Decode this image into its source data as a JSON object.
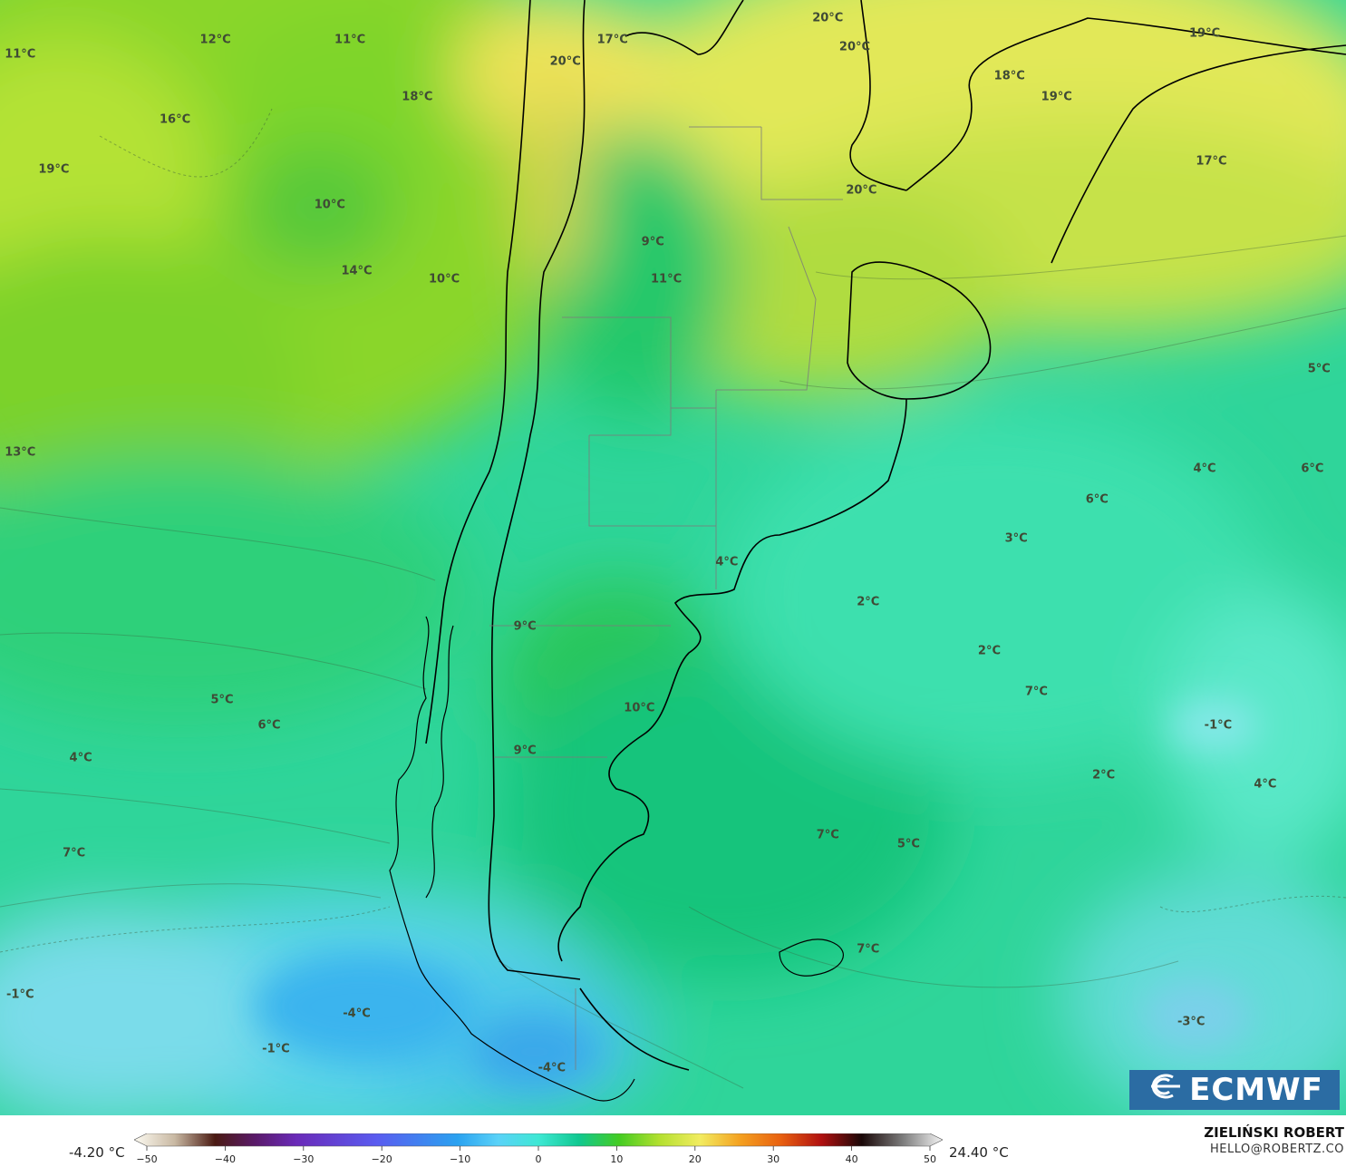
{
  "map": {
    "temperature_labels": [
      {
        "text": "11°C",
        "lon": 0.015,
        "lat": 0.049
      },
      {
        "text": "12°C",
        "lon": 0.16,
        "lat": 0.036
      },
      {
        "text": "11°C",
        "lon": 0.26,
        "lat": 0.036
      },
      {
        "text": "16°C",
        "lon": 0.13,
        "lat": 0.107
      },
      {
        "text": "19°C",
        "lon": 0.04,
        "lat": 0.152
      },
      {
        "text": "18°C",
        "lon": 0.31,
        "lat": 0.087
      },
      {
        "text": "20°C",
        "lon": 0.42,
        "lat": 0.055
      },
      {
        "text": "17°C",
        "lon": 0.455,
        "lat": 0.036
      },
      {
        "text": "10°C",
        "lon": 0.245,
        "lat": 0.184
      },
      {
        "text": "14°C",
        "lon": 0.265,
        "lat": 0.243
      },
      {
        "text": "10°C",
        "lon": 0.33,
        "lat": 0.25
      },
      {
        "text": "9°C",
        "lon": 0.485,
        "lat": 0.217
      },
      {
        "text": "11°C",
        "lon": 0.495,
        "lat": 0.25
      },
      {
        "text": "20°C",
        "lon": 0.615,
        "lat": 0.016
      },
      {
        "text": "20°C",
        "lon": 0.635,
        "lat": 0.042
      },
      {
        "text": "18°C",
        "lon": 0.75,
        "lat": 0.068
      },
      {
        "text": "19°C",
        "lon": 0.785,
        "lat": 0.087
      },
      {
        "text": "19°C",
        "lon": 0.895,
        "lat": 0.03
      },
      {
        "text": "17°C",
        "lon": 0.9,
        "lat": 0.145
      },
      {
        "text": "20°C",
        "lon": 0.64,
        "lat": 0.171
      },
      {
        "text": "5°C",
        "lon": 0.98,
        "lat": 0.331
      },
      {
        "text": "13°C",
        "lon": 0.015,
        "lat": 0.406
      },
      {
        "text": "4°C",
        "lon": 0.895,
        "lat": 0.42
      },
      {
        "text": "6°C",
        "lon": 0.975,
        "lat": 0.42
      },
      {
        "text": "6°C",
        "lon": 0.815,
        "lat": 0.448
      },
      {
        "text": "3°C",
        "lon": 0.755,
        "lat": 0.483
      },
      {
        "text": "4°C",
        "lon": 0.54,
        "lat": 0.504
      },
      {
        "text": "2°C",
        "lon": 0.645,
        "lat": 0.54
      },
      {
        "text": "9°C",
        "lon": 0.39,
        "lat": 0.562
      },
      {
        "text": "2°C",
        "lon": 0.735,
        "lat": 0.584
      },
      {
        "text": "7°C",
        "lon": 0.77,
        "lat": 0.62
      },
      {
        "text": "5°C",
        "lon": 0.165,
        "lat": 0.628
      },
      {
        "text": "6°C",
        "lon": 0.2,
        "lat": 0.65
      },
      {
        "text": "10°C",
        "lon": 0.475,
        "lat": 0.635
      },
      {
        "text": "-1°C",
        "lon": 0.905,
        "lat": 0.65
      },
      {
        "text": "4°C",
        "lon": 0.06,
        "lat": 0.68
      },
      {
        "text": "9°C",
        "lon": 0.39,
        "lat": 0.673
      },
      {
        "text": "2°C",
        "lon": 0.82,
        "lat": 0.695
      },
      {
        "text": "4°C",
        "lon": 0.94,
        "lat": 0.703
      },
      {
        "text": "7°C",
        "lon": 0.615,
        "lat": 0.749
      },
      {
        "text": "5°C",
        "lon": 0.675,
        "lat": 0.757
      },
      {
        "text": "7°C",
        "lon": 0.055,
        "lat": 0.765
      },
      {
        "text": "7°C",
        "lon": 0.645,
        "lat": 0.851
      },
      {
        "text": "-1°C",
        "lon": 0.015,
        "lat": 0.892
      },
      {
        "text": "-4°C",
        "lon": 0.265,
        "lat": 0.909
      },
      {
        "text": "-3°C",
        "lon": 0.885,
        "lat": 0.916
      },
      {
        "text": "-1°C",
        "lon": 0.205,
        "lat": 0.941
      },
      {
        "text": "-4°C",
        "lon": 0.41,
        "lat": 0.958
      }
    ]
  },
  "logo": {
    "text": "ECMWF",
    "icon": "ecmwf-logo-icon"
  },
  "colorbar": {
    "min_label": "-4.20 °C",
    "max_label": "24.40 °C",
    "ticks": [
      "−50",
      "−40",
      "−30",
      "−20",
      "−10",
      "0",
      "10",
      "20",
      "30",
      "40",
      "50"
    ],
    "range": [
      -50,
      50
    ],
    "stops": [
      {
        "v": -50,
        "c": "#fdfbf2"
      },
      {
        "v": -45,
        "c": "#c9b9a3"
      },
      {
        "v": -40,
        "c": "#4a1a12"
      },
      {
        "v": -35,
        "c": "#5a1a6a"
      },
      {
        "v": -30,
        "c": "#6a2ab8"
      },
      {
        "v": -20,
        "c": "#5a5cf0"
      },
      {
        "v": -10,
        "c": "#2aa2f0"
      },
      {
        "v": -5,
        "c": "#5ad2f8"
      },
      {
        "v": 0,
        "c": "#3ee8d4"
      },
      {
        "v": 5,
        "c": "#10c890"
      },
      {
        "v": 10,
        "c": "#44cc22"
      },
      {
        "v": 15,
        "c": "#b4e030"
      },
      {
        "v": 20,
        "c": "#f2ec60"
      },
      {
        "v": 25,
        "c": "#f4a020"
      },
      {
        "v": 30,
        "c": "#e86010"
      },
      {
        "v": 35,
        "c": "#b01010"
      },
      {
        "v": 40,
        "c": "#1a0808"
      },
      {
        "v": 45,
        "c": "#7a7a7a"
      },
      {
        "v": 50,
        "c": "#f4f4f4"
      }
    ]
  },
  "author": {
    "name": "ZIELIŃSKI ROBERT",
    "email": "HELLO@ROBERTZ.CO"
  }
}
